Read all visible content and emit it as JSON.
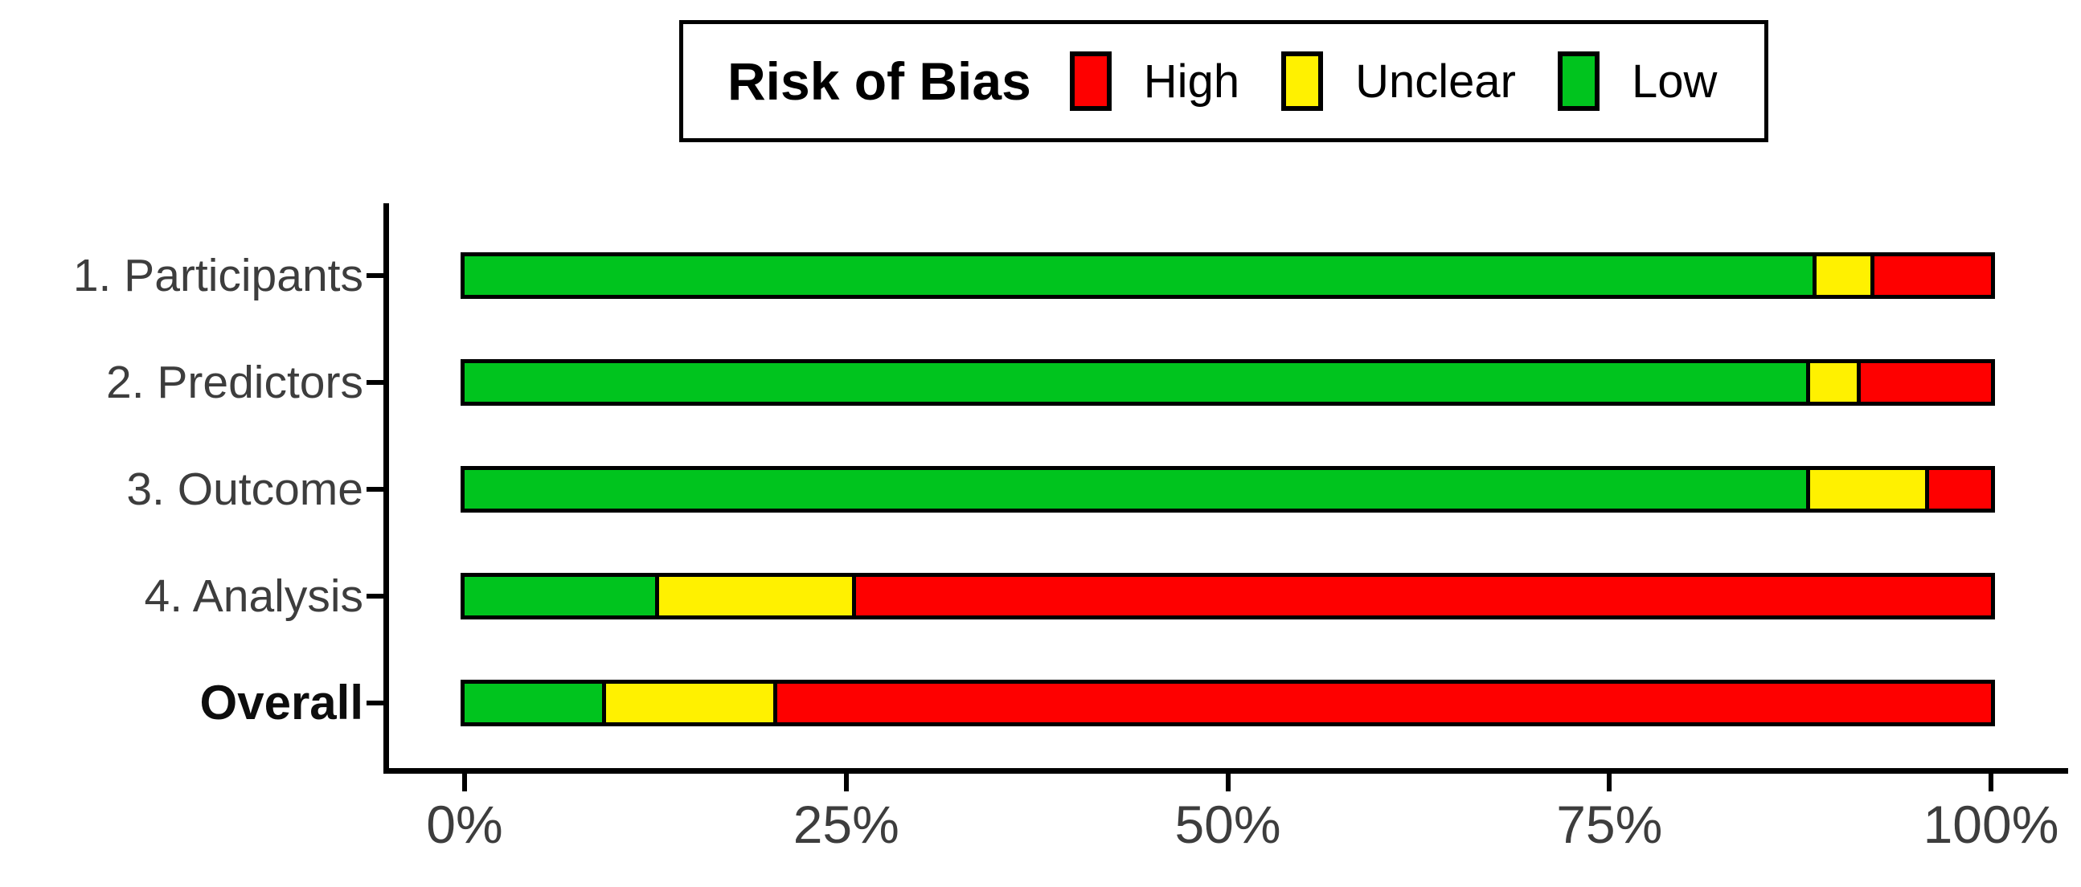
{
  "legend": {
    "title": "Risk of Bias",
    "items": [
      {
        "label": "High",
        "color": "#fe0000"
      },
      {
        "label": "Unclear",
        "color": "#fff100"
      },
      {
        "label": "Low",
        "color": "#00c41e"
      }
    ]
  },
  "chart_data": {
    "type": "bar",
    "orientation": "horizontal",
    "stacked": true,
    "title": "Risk of Bias",
    "categories": [
      "1. Participants",
      "2. Predictors",
      "3. Outcome",
      "4. Analysis",
      "Overall"
    ],
    "bold_categories": [
      "Overall"
    ],
    "segment_order_left_to_right": [
      "Low",
      "Unclear",
      "High"
    ],
    "series": [
      {
        "name": "Low",
        "color": "#00c41e",
        "values": [
          88.3,
          87.9,
          87.9,
          12.5,
          9.0
        ]
      },
      {
        "name": "Unclear",
        "color": "#fff100",
        "values": [
          3.8,
          3.3,
          7.8,
          12.9,
          11.2
        ]
      },
      {
        "name": "High",
        "color": "#fe0000",
        "values": [
          7.9,
          8.8,
          4.3,
          74.6,
          79.8
        ]
      }
    ],
    "x_axis": {
      "tick_labels": [
        "0%",
        "25%",
        "50%",
        "75%",
        "100%"
      ],
      "tick_values": [
        0,
        25,
        50,
        75,
        100
      ],
      "range": [
        0,
        100
      ],
      "grid": false
    },
    "legend_position": "top"
  },
  "colors": {
    "high": "#fe0000",
    "unclear": "#fff100",
    "low": "#00c41e",
    "axis": "#000000",
    "tick_text": "#3d3d3d"
  }
}
